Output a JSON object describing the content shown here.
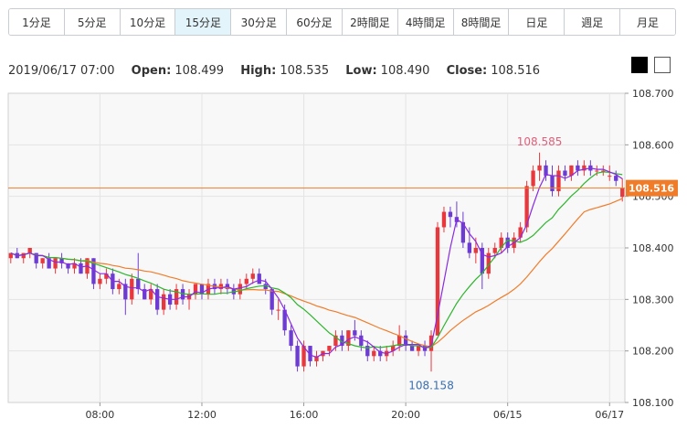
{
  "tabs": [
    "1分足",
    "5分足",
    "10分足",
    "15分足",
    "30分足",
    "60分足",
    "2時間足",
    "4時間足",
    "8時間足",
    "日足",
    "週足",
    "月足"
  ],
  "active_tab": "15分足",
  "ohlc": {
    "datetime": "2019/06/17 07:00",
    "open_label": "Open:",
    "open": "108.499",
    "high_label": "High:",
    "high": "108.535",
    "low_label": "Low:",
    "low": "108.490",
    "close_label": "Close:",
    "close": "108.516"
  },
  "colors": {
    "up": "#e8383d",
    "down": "#6c3cd2",
    "ma_fast": "#8a2be2",
    "ma_mid": "#2db52d",
    "ma_slow": "#f07c2a",
    "price_line": "#f07c2a",
    "grid": "#e4e4e4",
    "plot_bg": "#f8f8f8"
  },
  "chart_data": {
    "type": "candlestick",
    "title": "",
    "y_ticks": [
      "108.100",
      "108.200",
      "108.300",
      "108.400",
      "108.500",
      "108.600",
      "108.700"
    ],
    "ylim": [
      108.1,
      108.7
    ],
    "x_ticks": [
      "08:00",
      "12:00",
      "16:00",
      "20:00",
      "06/15",
      "06/17"
    ],
    "x_tick_index": [
      14,
      30,
      46,
      62,
      78,
      94
    ],
    "last_price": 108.516,
    "last_price_label": "108.516",
    "annotations": [
      {
        "text": "108.585",
        "index": 83,
        "value": 108.585,
        "position": "above"
      },
      {
        "text": "108.158",
        "index": 66,
        "value": 108.158,
        "position": "below"
      }
    ],
    "candles": [
      [
        108.38,
        108.39,
        108.37,
        108.39
      ],
      [
        108.39,
        108.4,
        108.38,
        108.38
      ],
      [
        108.38,
        108.39,
        108.37,
        108.39
      ],
      [
        108.39,
        108.4,
        108.38,
        108.4
      ],
      [
        108.39,
        108.39,
        108.36,
        108.37
      ],
      [
        108.37,
        108.38,
        108.36,
        108.38
      ],
      [
        108.38,
        108.39,
        108.36,
        108.36
      ],
      [
        108.36,
        108.38,
        108.35,
        108.38
      ],
      [
        108.38,
        108.39,
        108.36,
        108.37
      ],
      [
        108.37,
        108.37,
        108.35,
        108.36
      ],
      [
        108.36,
        108.38,
        108.35,
        108.37
      ],
      [
        108.37,
        108.38,
        108.35,
        108.35
      ],
      [
        108.35,
        108.38,
        108.34,
        108.38
      ],
      [
        108.38,
        108.38,
        108.32,
        108.33
      ],
      [
        108.33,
        108.35,
        108.32,
        108.34
      ],
      [
        108.34,
        108.36,
        108.33,
        108.35
      ],
      [
        108.35,
        108.36,
        108.31,
        108.32
      ],
      [
        108.32,
        108.34,
        108.31,
        108.33
      ],
      [
        108.33,
        108.34,
        108.27,
        108.3
      ],
      [
        108.3,
        108.35,
        108.29,
        108.34
      ],
      [
        108.34,
        108.39,
        108.31,
        108.32
      ],
      [
        108.32,
        108.33,
        108.3,
        108.3
      ],
      [
        108.3,
        108.33,
        108.29,
        108.32
      ],
      [
        108.32,
        108.33,
        108.27,
        108.28
      ],
      [
        108.28,
        108.32,
        108.27,
        108.31
      ],
      [
        108.31,
        108.32,
        108.28,
        108.29
      ],
      [
        108.29,
        108.33,
        108.28,
        108.32
      ],
      [
        108.32,
        108.33,
        108.29,
        108.3
      ],
      [
        108.3,
        108.32,
        108.28,
        108.31
      ],
      [
        108.31,
        108.33,
        108.3,
        108.33
      ],
      [
        108.33,
        108.33,
        108.3,
        108.31
      ],
      [
        108.31,
        108.34,
        108.3,
        108.33
      ],
      [
        108.33,
        108.34,
        108.31,
        108.32
      ],
      [
        108.32,
        108.34,
        108.31,
        108.33
      ],
      [
        108.33,
        108.34,
        108.31,
        108.32
      ],
      [
        108.32,
        108.33,
        108.3,
        108.31
      ],
      [
        108.31,
        108.34,
        108.3,
        108.33
      ],
      [
        108.33,
        108.35,
        108.32,
        108.34
      ],
      [
        108.34,
        108.36,
        108.33,
        108.35
      ],
      [
        108.35,
        108.36,
        108.33,
        108.33
      ],
      [
        108.33,
        108.34,
        108.31,
        108.32
      ],
      [
        108.32,
        108.32,
        108.27,
        108.28
      ],
      [
        108.28,
        108.3,
        108.26,
        108.28
      ],
      [
        108.28,
        108.29,
        108.23,
        108.24
      ],
      [
        108.24,
        108.25,
        108.2,
        108.21
      ],
      [
        108.21,
        108.22,
        108.16,
        108.17
      ],
      [
        108.17,
        108.22,
        108.16,
        108.21
      ],
      [
        108.21,
        108.21,
        108.17,
        108.18
      ],
      [
        108.18,
        108.2,
        108.17,
        108.19
      ],
      [
        108.19,
        108.2,
        108.18,
        108.2
      ],
      [
        108.2,
        108.21,
        108.19,
        108.21
      ],
      [
        108.21,
        108.24,
        108.2,
        108.23
      ],
      [
        108.23,
        108.24,
        108.2,
        108.21
      ],
      [
        108.21,
        108.24,
        108.2,
        108.24
      ],
      [
        108.24,
        108.26,
        108.22,
        108.23
      ],
      [
        108.23,
        108.24,
        108.2,
        108.21
      ],
      [
        108.21,
        108.22,
        108.18,
        108.19
      ],
      [
        108.19,
        108.21,
        108.18,
        108.2
      ],
      [
        108.2,
        108.21,
        108.18,
        108.19
      ],
      [
        108.19,
        108.21,
        108.18,
        108.2
      ],
      [
        108.2,
        108.22,
        108.19,
        108.21
      ],
      [
        108.21,
        108.25,
        108.2,
        108.23
      ],
      [
        108.23,
        108.24,
        108.2,
        108.21
      ],
      [
        108.21,
        108.22,
        108.2,
        108.2
      ],
      [
        108.2,
        108.21,
        108.19,
        108.21
      ],
      [
        108.21,
        108.22,
        108.19,
        108.2
      ],
      [
        108.2,
        108.24,
        108.16,
        108.23
      ],
      [
        108.23,
        108.45,
        108.23,
        108.44
      ],
      [
        108.44,
        108.48,
        108.43,
        108.47
      ],
      [
        108.47,
        108.48,
        108.44,
        108.46
      ],
      [
        108.46,
        108.49,
        108.44,
        108.45
      ],
      [
        108.45,
        108.47,
        108.4,
        108.41
      ],
      [
        108.41,
        108.44,
        108.38,
        108.39
      ],
      [
        108.39,
        108.42,
        108.37,
        108.4
      ],
      [
        108.4,
        108.41,
        108.32,
        108.35
      ],
      [
        108.35,
        108.4,
        108.34,
        108.39
      ],
      [
        108.39,
        108.41,
        108.38,
        108.4
      ],
      [
        108.4,
        108.43,
        108.39,
        108.42
      ],
      [
        108.42,
        108.43,
        108.39,
        108.4
      ],
      [
        108.4,
        108.43,
        108.39,
        108.42
      ],
      [
        108.42,
        108.45,
        108.41,
        108.44
      ],
      [
        108.44,
        108.53,
        108.43,
        108.52
      ],
      [
        108.52,
        108.56,
        108.51,
        108.55
      ],
      [
        108.55,
        108.585,
        108.53,
        108.56
      ],
      [
        108.56,
        108.57,
        108.53,
        108.54
      ],
      [
        108.54,
        108.56,
        108.5,
        108.51
      ],
      [
        108.51,
        108.56,
        108.5,
        108.55
      ],
      [
        108.55,
        108.56,
        108.53,
        108.54
      ],
      [
        108.54,
        108.56,
        108.53,
        108.56
      ],
      [
        108.56,
        108.57,
        108.54,
        108.55
      ],
      [
        108.55,
        108.57,
        108.54,
        108.56
      ],
      [
        108.56,
        108.57,
        108.54,
        108.55
      ],
      [
        108.55,
        108.56,
        108.54,
        108.55
      ],
      [
        108.55,
        108.56,
        108.54,
        108.55
      ],
      [
        108.54,
        108.56,
        108.53,
        108.54
      ],
      [
        108.54,
        108.55,
        108.52,
        108.53
      ],
      [
        108.499,
        108.535,
        108.49,
        108.516
      ]
    ]
  }
}
